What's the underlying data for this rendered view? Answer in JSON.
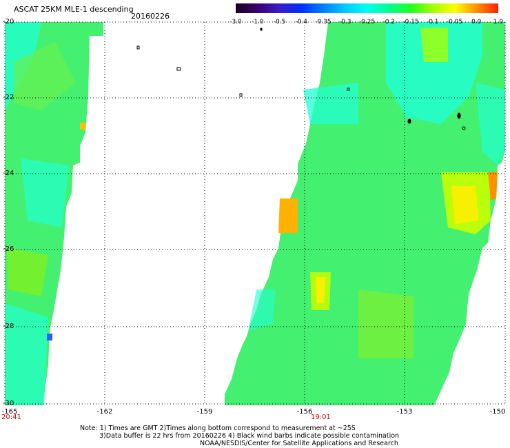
{
  "header": {
    "title": "ASCAT 25KM MLE-1 descending",
    "date": "20160226"
  },
  "colorbar": {
    "labels": [
      "-3.0",
      "-1.0",
      "-0.5",
      "-0.4",
      "-0.35",
      "-0.3",
      "-0.25",
      "-0.2",
      "-0.15",
      "-0.1",
      "-0.05",
      "0.0",
      "1.0"
    ],
    "colors": [
      "#1a0020",
      "#3a0070",
      "#3a1cc8",
      "#0030ff",
      "#0080ff",
      "#00c8ff",
      "#00ffee",
      "#00ff90",
      "#20ff20",
      "#a0ff00",
      "#ffff00",
      "#ff9000",
      "#ff2000"
    ]
  },
  "axes": {
    "lat_labels": [
      "-20",
      "-22",
      "-24",
      "-26",
      "-28",
      "-30"
    ],
    "lon_labels": [
      "-165",
      "-162",
      "-159",
      "-156",
      "-153",
      "-150"
    ]
  },
  "times": {
    "left": "20:41",
    "center": "19:01"
  },
  "notes": {
    "line1": "Note: 1) Times are GMT 2)Times along bottom correspond to measurement at ~25S",
    "line2": "3)Data buffer is 22 hrs from 20160226 4) Black wind barbs indicate possible contamination",
    "line3": "NOAA/NESDIS/Center for Satellite Applications and Research"
  }
}
